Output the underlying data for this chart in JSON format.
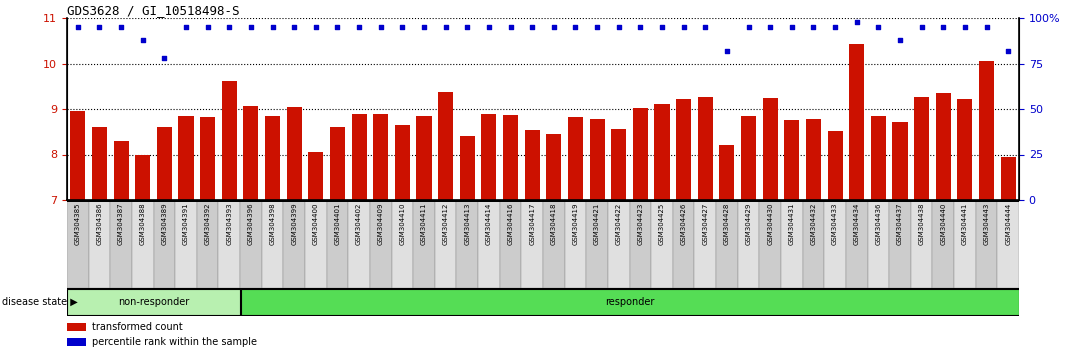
{
  "title": "GDS3628 / GI_10518498-S",
  "samples": [
    "GSM304385",
    "GSM304386",
    "GSM304387",
    "GSM304388",
    "GSM304389",
    "GSM304391",
    "GSM304392",
    "GSM304393",
    "GSM304396",
    "GSM304398",
    "GSM304399",
    "GSM304400",
    "GSM304401",
    "GSM304402",
    "GSM304409",
    "GSM304410",
    "GSM304411",
    "GSM304412",
    "GSM304413",
    "GSM304414",
    "GSM304416",
    "GSM304417",
    "GSM304418",
    "GSM304419",
    "GSM304421",
    "GSM304422",
    "GSM304423",
    "GSM304425",
    "GSM304426",
    "GSM304427",
    "GSM304428",
    "GSM304429",
    "GSM304430",
    "GSM304431",
    "GSM304432",
    "GSM304433",
    "GSM304434",
    "GSM304436",
    "GSM304437",
    "GSM304438",
    "GSM304440",
    "GSM304441",
    "GSM304443",
    "GSM304444"
  ],
  "bar_values": [
    8.95,
    8.6,
    8.3,
    8.0,
    8.6,
    8.85,
    8.83,
    9.62,
    9.06,
    8.85,
    9.04,
    8.05,
    8.6,
    8.88,
    8.88,
    8.65,
    8.85,
    9.37,
    8.4,
    8.88,
    8.87,
    8.54,
    8.45,
    8.83,
    8.78,
    8.55,
    9.02,
    9.12,
    9.22,
    9.27,
    8.2,
    8.85,
    9.24,
    8.76,
    8.78,
    8.52,
    10.42,
    8.84,
    8.72,
    9.27,
    9.35,
    9.23,
    10.06,
    7.95
  ],
  "percentile_values_pct": [
    95,
    95,
    95,
    88,
    78,
    95,
    95,
    95,
    95,
    95,
    95,
    95,
    95,
    95,
    95,
    95,
    95,
    95,
    95,
    95,
    95,
    95,
    95,
    95,
    95,
    95,
    95,
    95,
    95,
    95,
    82,
    95,
    95,
    95,
    95,
    95,
    98,
    95,
    88,
    95,
    95,
    95,
    95,
    82
  ],
  "non_responder_count": 8,
  "ylim_left": [
    7,
    11
  ],
  "ylim_right": [
    0,
    100
  ],
  "yticks_left": [
    7,
    8,
    9,
    10,
    11
  ],
  "yticks_right": [
    0,
    25,
    50,
    75,
    100
  ],
  "bar_color": "#cc1100",
  "dot_color": "#0000cc",
  "non_responder_label": "non-responder",
  "responder_label": "responder",
  "legend_bar_label": "transformed count",
  "legend_dot_label": "percentile rank within the sample",
  "disease_state_label": "disease state",
  "non_responder_bg": "#b8f0b0",
  "responder_bg": "#55dd55",
  "plot_bg": "#ffffff",
  "label_bg_even": "#cccccc",
  "label_bg_odd": "#e0e0e0",
  "title_fontsize": 9,
  "tick_fontsize": 8,
  "bar_width": 0.7
}
